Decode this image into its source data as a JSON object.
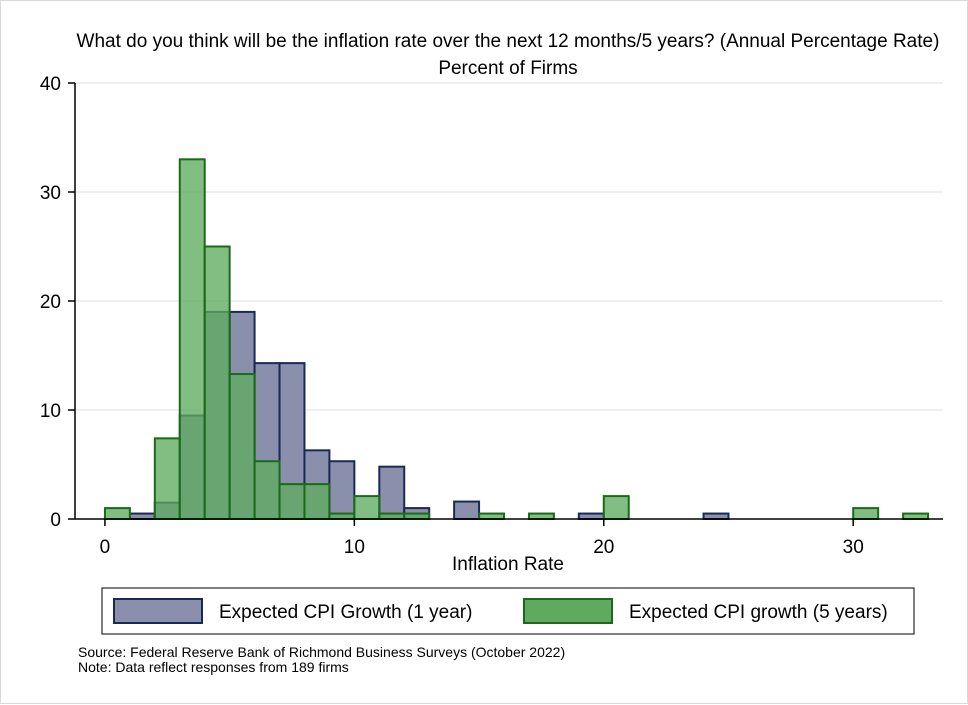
{
  "chart_data": {
    "type": "bar",
    "title": "What do you think will be the inflation rate over the next 12 months/5 years? (Annual Percentage Rate)",
    "subtitle": "Percent of Firms",
    "xlabel": "Inflation Rate",
    "ylabel": "Percent of Firms",
    "xlim": [
      -1.2,
      33.6
    ],
    "ylim": [
      0,
      40
    ],
    "x_ticks": [
      0,
      10,
      20,
      30
    ],
    "y_ticks": [
      0,
      10,
      20,
      30,
      40
    ],
    "grid": true,
    "bin_width": 1,
    "series": [
      {
        "name": "Expected CPI Growth (1 year)",
        "color": "#8a90ac",
        "edge_color": "#1a2a55",
        "bins": [
          {
            "x": 1.5,
            "value": 0.5
          },
          {
            "x": 2.5,
            "value": 1.5
          },
          {
            "x": 3.5,
            "value": 9.5
          },
          {
            "x": 4.5,
            "value": 19.0
          },
          {
            "x": 5.5,
            "value": 19.0
          },
          {
            "x": 6.5,
            "value": 14.3
          },
          {
            "x": 7.5,
            "value": 14.3
          },
          {
            "x": 8.5,
            "value": 6.3
          },
          {
            "x": 9.5,
            "value": 5.3
          },
          {
            "x": 11.5,
            "value": 4.8
          },
          {
            "x": 12.5,
            "value": 1.0
          },
          {
            "x": 14.5,
            "value": 1.6
          },
          {
            "x": 19.5,
            "value": 0.5
          },
          {
            "x": 24.5,
            "value": 0.5
          }
        ]
      },
      {
        "name": "Expected CPI growth (5 years)",
        "color": "#5faa5f",
        "edge_color": "#1a6a1a",
        "bins": [
          {
            "x": 0.5,
            "value": 1.0
          },
          {
            "x": 2.5,
            "value": 7.4
          },
          {
            "x": 3.5,
            "value": 33.0
          },
          {
            "x": 4.5,
            "value": 25.0
          },
          {
            "x": 5.5,
            "value": 13.3
          },
          {
            "x": 6.5,
            "value": 5.3
          },
          {
            "x": 7.5,
            "value": 3.2
          },
          {
            "x": 8.5,
            "value": 3.2
          },
          {
            "x": 9.5,
            "value": 0.5
          },
          {
            "x": 10.5,
            "value": 2.1
          },
          {
            "x": 11.5,
            "value": 0.5
          },
          {
            "x": 12.5,
            "value": 0.5
          },
          {
            "x": 15.5,
            "value": 0.5
          },
          {
            "x": 17.5,
            "value": 0.5
          },
          {
            "x": 20.5,
            "value": 2.1
          },
          {
            "x": 30.5,
            "value": 1.0
          },
          {
            "x": 32.5,
            "value": 0.5
          }
        ]
      }
    ],
    "legend_position": "bottom"
  },
  "notes": {
    "source": "Source: Federal Reserve Bank of Richmond Business Surveys (October 2022)",
    "note": "Note: Data reflect responses from 189 firms"
  }
}
